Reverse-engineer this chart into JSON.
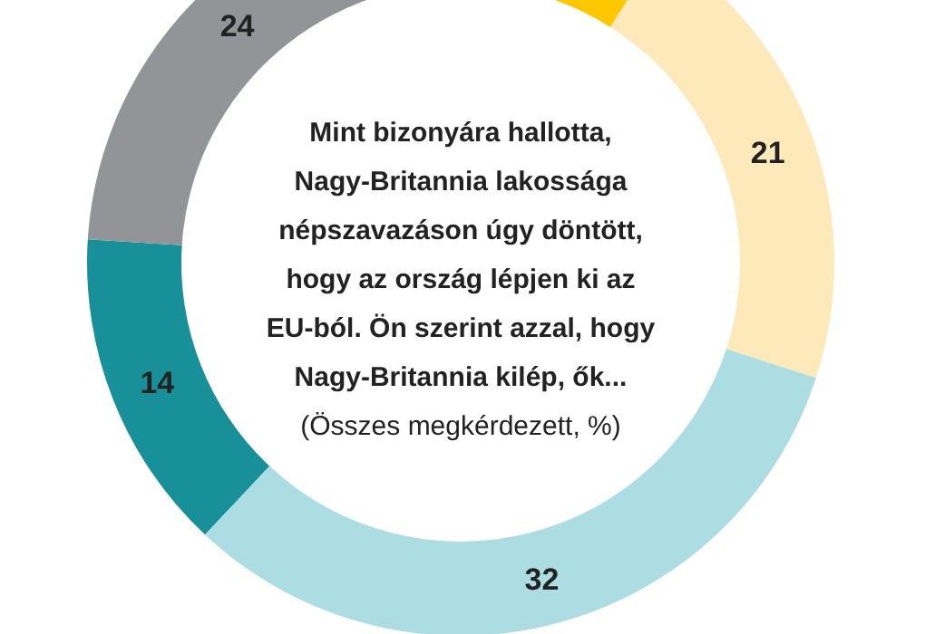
{
  "chart_data": {
    "type": "donut",
    "title": "Mint bizonyára hallotta,\nNagy-Britannia lakossága\nnépszavazáson úgy döntött,\nhogy az ország lépjen ki az\nEU-ból. Ön szerint azzal, hogy\nNagy-Britannia kilép, ők...",
    "subtitle": "(Összes megkérdezett, %)",
    "categories": [
      null,
      null,
      null,
      null,
      null
    ],
    "values": [
      9,
      21,
      32,
      14,
      24
    ],
    "colors": [
      "#fdc800",
      "#fde9b9",
      "#acdde3",
      "#17909a",
      "#939497"
    ],
    "value_labels": [
      null,
      "21",
      "32",
      "14",
      "24"
    ]
  }
}
